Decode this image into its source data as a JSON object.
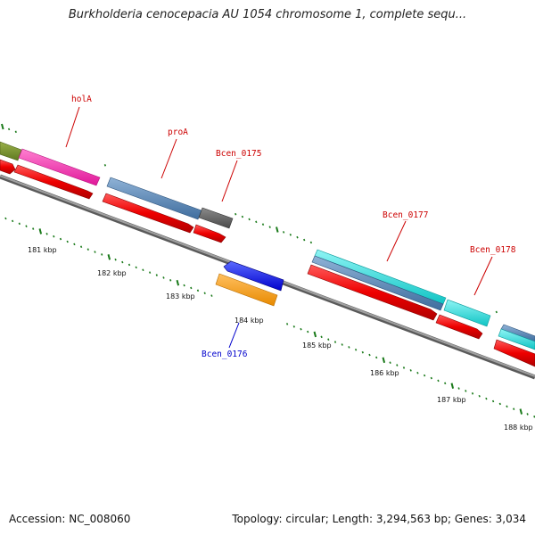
{
  "title": "Burkholderia cenocepacia AU 1054 chromosome 1, complete sequ...",
  "footer": {
    "accession": "Accession: NC_008060",
    "topology": "Topology: circular; Length: 3,294,563 bp; Genes: 3,034"
  },
  "colors": {
    "backbone": "#7f7f7f",
    "tick": "#1a7a1a",
    "red_label": "#cc0000",
    "blue_label": "#0000cc"
  },
  "kbp_labels": [
    "181 kbp",
    "182 kbp",
    "183 kbp",
    "184 kbp",
    "185 kbp",
    "186 kbp",
    "187 kbp",
    "188 kbp"
  ],
  "gene_labels": [
    {
      "text": "holA",
      "color": "red"
    },
    {
      "text": "proA",
      "color": "red"
    },
    {
      "text": "Bcen_0175",
      "color": "red"
    },
    {
      "text": "Bcen_0176",
      "color": "blue"
    },
    {
      "text": "Bcen_0177",
      "color": "red"
    },
    {
      "text": "Bcen_0178",
      "color": "red"
    }
  ]
}
